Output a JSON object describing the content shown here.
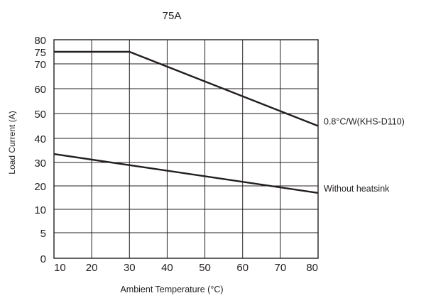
{
  "chart_data": {
    "type": "line",
    "title": "75A",
    "xlabel": "Ambient Temperature (°C)",
    "ylabel": "Load Current (A)",
    "xlim": [
      10,
      80
    ],
    "x_ticks": [
      "10",
      "20",
      "30",
      "40",
      "50",
      "60",
      "70",
      "80"
    ],
    "y_ticks": [
      "0",
      "5",
      "10",
      "20",
      "30",
      "40",
      "50",
      "60",
      "70",
      "75",
      "80"
    ],
    "grid": true,
    "series": [
      {
        "name": "0.8°C/W(KHS-D110)",
        "x": [
          10,
          30,
          80
        ],
        "y": [
          75,
          75,
          45
        ]
      },
      {
        "name": "Without heatsink",
        "x": [
          10,
          80
        ],
        "y": [
          33.5,
          17
        ]
      }
    ]
  }
}
